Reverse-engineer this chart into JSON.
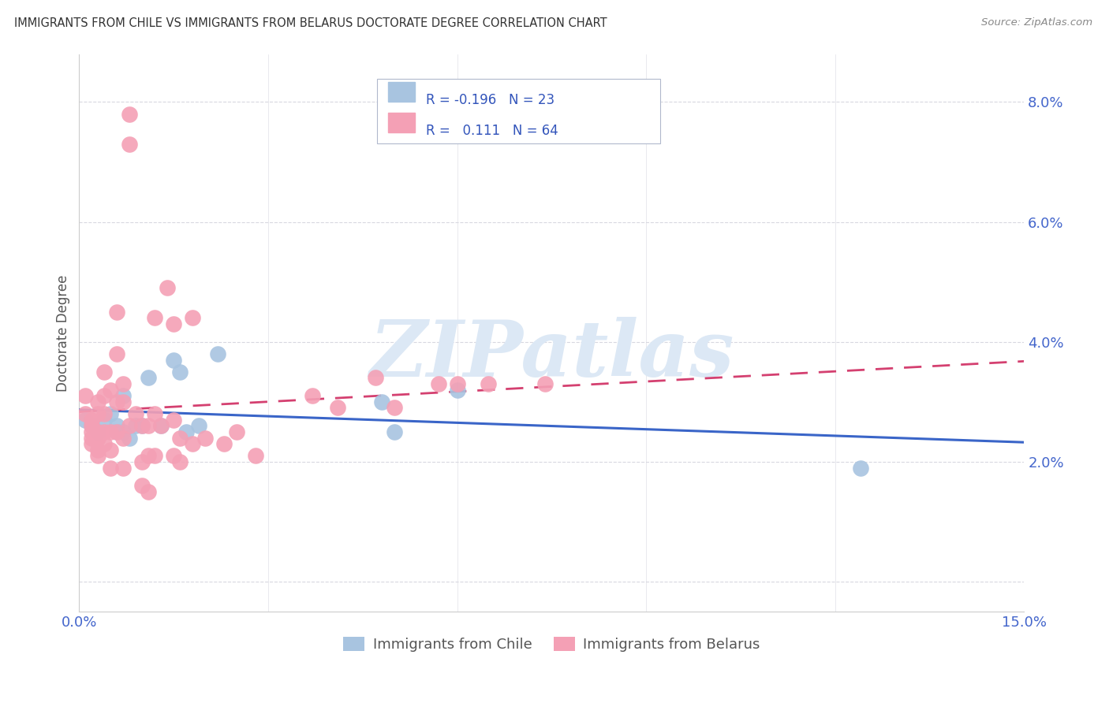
{
  "title": "IMMIGRANTS FROM CHILE VS IMMIGRANTS FROM BELARUS DOCTORATE DEGREE CORRELATION CHART",
  "source": "Source: ZipAtlas.com",
  "ylabel": "Doctorate Degree",
  "y_ticks": [
    0.0,
    0.02,
    0.04,
    0.06,
    0.08
  ],
  "y_tick_labels": [
    "",
    "2.0%",
    "4.0%",
    "6.0%",
    "8.0%"
  ],
  "x_ticks": [
    0.0,
    0.03,
    0.06,
    0.09,
    0.12,
    0.15
  ],
  "xlim": [
    0.0,
    0.15
  ],
  "ylim": [
    -0.005,
    0.088
  ],
  "chile_color": "#a8c4e0",
  "chile_edge_color": "#a8c4e0",
  "belarus_color": "#f4a0b5",
  "belarus_edge_color": "#f4a0b5",
  "chile_line_color": "#3a65c8",
  "belarus_line_color": "#d44070",
  "watermark": "ZIPatlas",
  "watermark_color": "#dce8f5",
  "legend_label_chile": "Immigrants from Chile",
  "legend_label_belarus": "Immigrants from Belarus",
  "legend_r_color": "#3355bb",
  "legend_text_color": "#333333",
  "grid_color": "#d8d8e0",
  "spine_color": "#cccccc",
  "title_color": "#333333",
  "source_color": "#888888",
  "axis_label_color": "#555555",
  "tick_color": "#4466cc",
  "chile_scatter": [
    [
      0.001,
      0.027
    ],
    [
      0.002,
      0.026
    ],
    [
      0.003,
      0.025
    ],
    [
      0.004,
      0.027
    ],
    [
      0.005,
      0.028
    ],
    [
      0.006,
      0.026
    ],
    [
      0.006,
      0.025
    ],
    [
      0.007,
      0.031
    ],
    [
      0.007,
      0.025
    ],
    [
      0.008,
      0.024
    ],
    [
      0.009,
      0.026
    ],
    [
      0.01,
      0.026
    ],
    [
      0.011,
      0.034
    ],
    [
      0.013,
      0.026
    ],
    [
      0.015,
      0.037
    ],
    [
      0.016,
      0.035
    ],
    [
      0.017,
      0.025
    ],
    [
      0.019,
      0.026
    ],
    [
      0.022,
      0.038
    ],
    [
      0.048,
      0.03
    ],
    [
      0.05,
      0.025
    ],
    [
      0.06,
      0.032
    ],
    [
      0.124,
      0.019
    ]
  ],
  "belarus_scatter": [
    [
      0.001,
      0.031
    ],
    [
      0.001,
      0.028
    ],
    [
      0.002,
      0.027
    ],
    [
      0.002,
      0.026
    ],
    [
      0.002,
      0.025
    ],
    [
      0.002,
      0.024
    ],
    [
      0.002,
      0.023
    ],
    [
      0.003,
      0.03
    ],
    [
      0.003,
      0.028
    ],
    [
      0.003,
      0.025
    ],
    [
      0.003,
      0.024
    ],
    [
      0.003,
      0.022
    ],
    [
      0.003,
      0.021
    ],
    [
      0.004,
      0.035
    ],
    [
      0.004,
      0.031
    ],
    [
      0.004,
      0.028
    ],
    [
      0.004,
      0.025
    ],
    [
      0.004,
      0.023
    ],
    [
      0.005,
      0.032
    ],
    [
      0.005,
      0.025
    ],
    [
      0.005,
      0.022
    ],
    [
      0.005,
      0.019
    ],
    [
      0.006,
      0.045
    ],
    [
      0.006,
      0.038
    ],
    [
      0.006,
      0.03
    ],
    [
      0.006,
      0.025
    ],
    [
      0.007,
      0.033
    ],
    [
      0.007,
      0.03
    ],
    [
      0.007,
      0.024
    ],
    [
      0.007,
      0.019
    ],
    [
      0.008,
      0.073
    ],
    [
      0.008,
      0.078
    ],
    [
      0.008,
      0.026
    ],
    [
      0.009,
      0.028
    ],
    [
      0.01,
      0.026
    ],
    [
      0.01,
      0.02
    ],
    [
      0.01,
      0.016
    ],
    [
      0.011,
      0.026
    ],
    [
      0.011,
      0.021
    ],
    [
      0.011,
      0.015
    ],
    [
      0.012,
      0.044
    ],
    [
      0.012,
      0.028
    ],
    [
      0.012,
      0.021
    ],
    [
      0.013,
      0.026
    ],
    [
      0.014,
      0.049
    ],
    [
      0.015,
      0.043
    ],
    [
      0.015,
      0.027
    ],
    [
      0.015,
      0.021
    ],
    [
      0.016,
      0.024
    ],
    [
      0.016,
      0.02
    ],
    [
      0.018,
      0.044
    ],
    [
      0.018,
      0.023
    ],
    [
      0.02,
      0.024
    ],
    [
      0.023,
      0.023
    ],
    [
      0.025,
      0.025
    ],
    [
      0.028,
      0.021
    ],
    [
      0.037,
      0.031
    ],
    [
      0.041,
      0.029
    ],
    [
      0.047,
      0.034
    ],
    [
      0.05,
      0.029
    ],
    [
      0.057,
      0.033
    ],
    [
      0.06,
      0.033
    ],
    [
      0.065,
      0.033
    ],
    [
      0.074,
      0.033
    ]
  ]
}
